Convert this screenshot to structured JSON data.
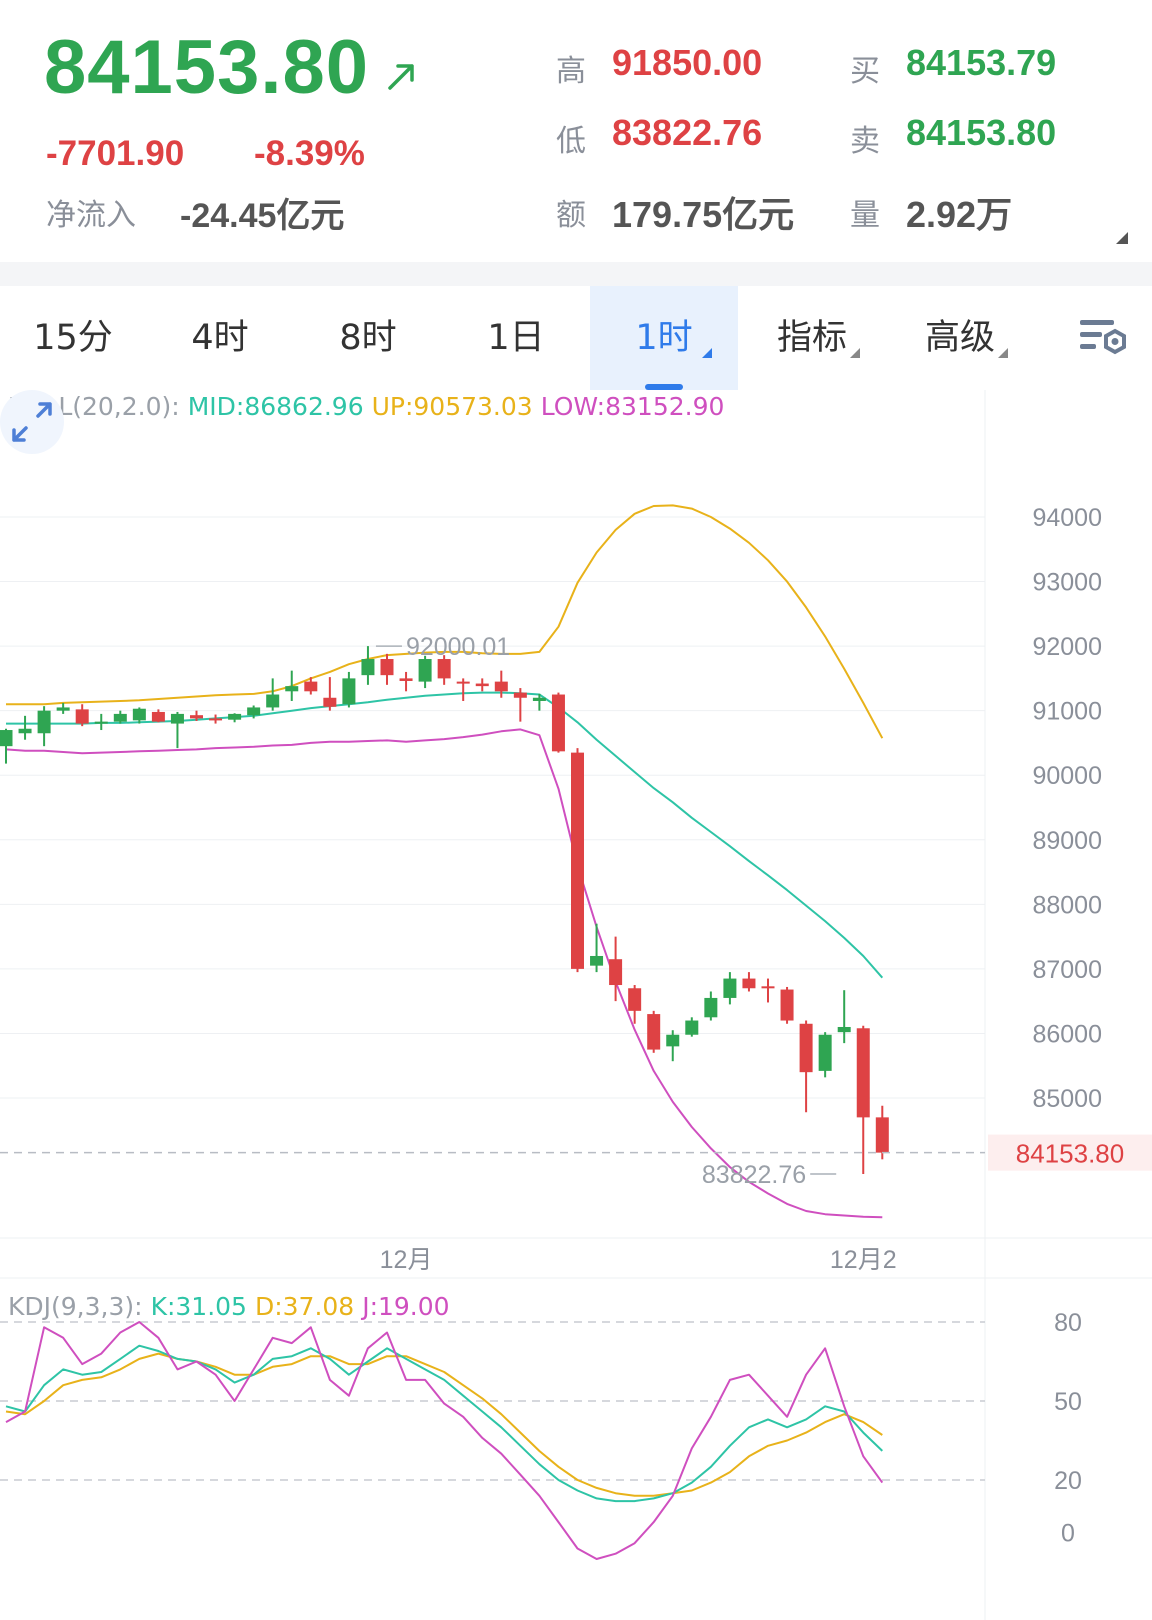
{
  "quote": {
    "price": "84153.80",
    "change": "-7701.90",
    "change_pct": "-8.39%",
    "net_inflow_label": "净流入",
    "net_inflow_value": "-24.45亿元",
    "high_label": "高",
    "high_value": "91850.00",
    "low_label": "低",
    "low_value": "83822.76",
    "amount_label": "额",
    "amount_value": "179.75亿元",
    "bid_label": "买",
    "bid_value": "84153.79",
    "ask_label": "卖",
    "ask_value": "84153.80",
    "volume_label": "量",
    "volume_value": "2.92万",
    "up_color": "#2fa552",
    "down_color": "#de4244"
  },
  "tabs": [
    {
      "label": "15分",
      "active": false,
      "dropdown": false
    },
    {
      "label": "4时",
      "active": false,
      "dropdown": false
    },
    {
      "label": "8时",
      "active": false,
      "dropdown": false
    },
    {
      "label": "1日",
      "active": false,
      "dropdown": false
    },
    {
      "label": "1时",
      "active": true,
      "dropdown": true
    },
    {
      "label": "指标",
      "active": false,
      "dropdown": true
    },
    {
      "label": "高级",
      "active": false,
      "dropdown": true
    }
  ],
  "icons": {
    "settings": "chart-settings-icon",
    "expand": "expand-arrows-icon",
    "trend": "up-right-arrow-icon"
  },
  "chart_data": [
    {
      "type": "candlestick",
      "interval": "1时",
      "indicator": {
        "name": "BOLL(20,2.0):",
        "mid_label": "MID:86862.96",
        "up_label": "UP:90573.03",
        "low_label": "LOW:83152.90"
      },
      "ylim": [
        82000,
        95000
      ],
      "y_ticks": [
        85000,
        86000,
        87000,
        88000,
        89000,
        90000,
        91000,
        92000,
        93000,
        94000
      ],
      "y_tick_labels": [
        "85000",
        "86000",
        "87000",
        "88000",
        "89000",
        "90000",
        "91000",
        "92000",
        "93000",
        "94000"
      ],
      "x_labels": [
        {
          "index": 21,
          "label": "12月"
        },
        {
          "index": 45,
          "label": "12月2"
        }
      ],
      "grid": true,
      "last_price": 84153.8,
      "last_price_label": "84153.80",
      "high_marker": {
        "index": 19,
        "value": 92000.01,
        "label": "92000.01"
      },
      "low_marker": {
        "index": 44,
        "value": 83822.76,
        "label": "83822.76"
      },
      "candles": [
        {
          "o": 90450,
          "h": 90720,
          "l": 90180,
          "c": 90700
        },
        {
          "o": 90650,
          "h": 90920,
          "l": 90550,
          "c": 90720
        },
        {
          "o": 90650,
          "h": 91070,
          "l": 90450,
          "c": 91000
        },
        {
          "o": 91000,
          "h": 91120,
          "l": 90950,
          "c": 91050
        },
        {
          "o": 91020,
          "h": 91100,
          "l": 90760,
          "c": 90800
        },
        {
          "o": 90800,
          "h": 90950,
          "l": 90700,
          "c": 90830
        },
        {
          "o": 90830,
          "h": 91000,
          "l": 90800,
          "c": 90950
        },
        {
          "o": 90850,
          "h": 91050,
          "l": 90800,
          "c": 91030
        },
        {
          "o": 90980,
          "h": 91020,
          "l": 90820,
          "c": 90830
        },
        {
          "o": 90800,
          "h": 90980,
          "l": 90420,
          "c": 90950
        },
        {
          "o": 90930,
          "h": 91000,
          "l": 90840,
          "c": 90880
        },
        {
          "o": 90880,
          "h": 90940,
          "l": 90800,
          "c": 90870
        },
        {
          "o": 90860,
          "h": 90960,
          "l": 90820,
          "c": 90950
        },
        {
          "o": 90930,
          "h": 91080,
          "l": 90880,
          "c": 91050
        },
        {
          "o": 91050,
          "h": 91500,
          "l": 91000,
          "c": 91250
        },
        {
          "o": 91300,
          "h": 91620,
          "l": 91150,
          "c": 91380
        },
        {
          "o": 91450,
          "h": 91520,
          "l": 91250,
          "c": 91300
        },
        {
          "o": 91200,
          "h": 91520,
          "l": 91000,
          "c": 91060
        },
        {
          "o": 91100,
          "h": 91600,
          "l": 91050,
          "c": 91500
        },
        {
          "o": 91550,
          "h": 92000,
          "l": 91400,
          "c": 91800
        },
        {
          "o": 91800,
          "h": 91880,
          "l": 91400,
          "c": 91550
        },
        {
          "o": 91500,
          "h": 91600,
          "l": 91300,
          "c": 91460
        },
        {
          "o": 91450,
          "h": 91850,
          "l": 91350,
          "c": 91800
        },
        {
          "o": 91800,
          "h": 91860,
          "l": 91400,
          "c": 91500
        },
        {
          "o": 91450,
          "h": 91500,
          "l": 91150,
          "c": 91420
        },
        {
          "o": 91420,
          "h": 91500,
          "l": 91300,
          "c": 91380
        },
        {
          "o": 91450,
          "h": 91620,
          "l": 91200,
          "c": 91300
        },
        {
          "o": 91280,
          "h": 91350,
          "l": 90830,
          "c": 91200
        },
        {
          "o": 91150,
          "h": 91260,
          "l": 91000,
          "c": 91200
        },
        {
          "o": 91250,
          "h": 91280,
          "l": 90350,
          "c": 90370
        },
        {
          "o": 90350,
          "h": 90420,
          "l": 86950,
          "c": 87000
        },
        {
          "o": 87050,
          "h": 87700,
          "l": 86950,
          "c": 87200
        },
        {
          "o": 87150,
          "h": 87500,
          "l": 86500,
          "c": 86750
        },
        {
          "o": 86700,
          "h": 86750,
          "l": 86150,
          "c": 86350
        },
        {
          "o": 86300,
          "h": 86350,
          "l": 85700,
          "c": 85750
        },
        {
          "o": 85800,
          "h": 86050,
          "l": 85570,
          "c": 85980
        },
        {
          "o": 85980,
          "h": 86250,
          "l": 85950,
          "c": 86200
        },
        {
          "o": 86250,
          "h": 86650,
          "l": 86200,
          "c": 86550
        },
        {
          "o": 86550,
          "h": 86950,
          "l": 86450,
          "c": 86850
        },
        {
          "o": 86850,
          "h": 86950,
          "l": 86650,
          "c": 86700
        },
        {
          "o": 86730,
          "h": 86850,
          "l": 86480,
          "c": 86720
        },
        {
          "o": 86680,
          "h": 86720,
          "l": 86150,
          "c": 86200
        },
        {
          "o": 86150,
          "h": 86200,
          "l": 84780,
          "c": 85400
        },
        {
          "o": 85420,
          "h": 86020,
          "l": 85320,
          "c": 85980
        },
        {
          "o": 86020,
          "h": 86670,
          "l": 85850,
          "c": 86100
        },
        {
          "o": 86080,
          "h": 86120,
          "l": 83822.76,
          "c": 84700
        },
        {
          "o": 84700,
          "h": 84880,
          "l": 84050,
          "c": 84153.8
        }
      ],
      "boll_up": [
        91100,
        91100,
        91100,
        91120,
        91130,
        91140,
        91150,
        91160,
        91180,
        91200,
        91220,
        91240,
        91250,
        91260,
        91300,
        91380,
        91500,
        91600,
        91720,
        91800,
        91860,
        91880,
        91900,
        91910,
        91910,
        91890,
        91880,
        91880,
        91910,
        92300,
        92980,
        93450,
        93800,
        94050,
        94170,
        94180,
        94130,
        94000,
        93820,
        93600,
        93330,
        93000,
        92600,
        92150,
        91650,
        91120,
        90573.03
      ],
      "boll_mid": [
        90800,
        90800,
        90800,
        90800,
        90800,
        90810,
        90810,
        90820,
        90830,
        90840,
        90860,
        90880,
        90900,
        90920,
        90960,
        91000,
        91040,
        91070,
        91100,
        91130,
        91170,
        91200,
        91230,
        91250,
        91270,
        91280,
        91280,
        91270,
        91250,
        91050,
        90820,
        90550,
        90300,
        90050,
        89800,
        89580,
        89340,
        89120,
        88900,
        88670,
        88450,
        88220,
        87980,
        87740,
        87480,
        87200,
        86862.96
      ],
      "boll_low": [
        90400,
        90380,
        90380,
        90360,
        90340,
        90350,
        90360,
        90370,
        90380,
        90390,
        90400,
        90420,
        90430,
        90440,
        90460,
        90470,
        90500,
        90520,
        90520,
        90530,
        90540,
        90520,
        90540,
        90560,
        90590,
        90630,
        90680,
        90710,
        90620,
        89790,
        88600,
        87650,
        86800,
        86060,
        85420,
        84940,
        84550,
        84220,
        83930,
        83700,
        83520,
        83360,
        83250,
        83200,
        83180,
        83160,
        83152.9
      ]
    },
    {
      "type": "line",
      "indicator": {
        "name": "KDJ(9,3,3):",
        "k_label": "K:31.05",
        "d_label": "D:37.08",
        "j_label": "J:19.00"
      },
      "ylim": [
        0,
        80
      ],
      "y_ticks": [
        0,
        20,
        50,
        80
      ],
      "y_tick_labels": [
        "0",
        "20",
        "50",
        "80"
      ],
      "k": [
        48,
        46,
        56,
        62,
        60,
        61,
        66,
        71,
        69,
        66,
        65,
        62,
        57,
        60,
        66,
        67,
        70,
        66,
        60,
        65,
        70,
        66,
        62,
        58,
        52,
        46,
        40,
        33,
        26,
        20,
        16,
        13,
        12,
        12,
        13,
        15,
        19,
        25,
        33,
        40,
        43,
        40,
        43,
        48,
        46,
        38,
        31.05
      ],
      "d": [
        46,
        45,
        50,
        56,
        58,
        59,
        62,
        66,
        68,
        66,
        65,
        63,
        60,
        60,
        63,
        64,
        67,
        67,
        64,
        64,
        67,
        67,
        64,
        61,
        56,
        51,
        45,
        38,
        31,
        25,
        20,
        17,
        15,
        14,
        14,
        15,
        16,
        19,
        23,
        29,
        33,
        35,
        38,
        42,
        45,
        42,
        37.08
      ],
      "j": [
        42,
        46,
        78,
        74,
        64,
        68,
        76,
        80,
        74,
        62,
        65,
        60,
        50,
        62,
        74,
        72,
        78,
        58,
        52,
        70,
        76,
        58,
        58,
        49,
        44,
        36,
        30,
        22,
        14,
        4,
        -6,
        -10,
        -8,
        -4,
        4,
        14,
        32,
        44,
        58,
        60,
        52,
        44,
        60,
        70,
        48,
        29,
        19.0
      ]
    }
  ]
}
